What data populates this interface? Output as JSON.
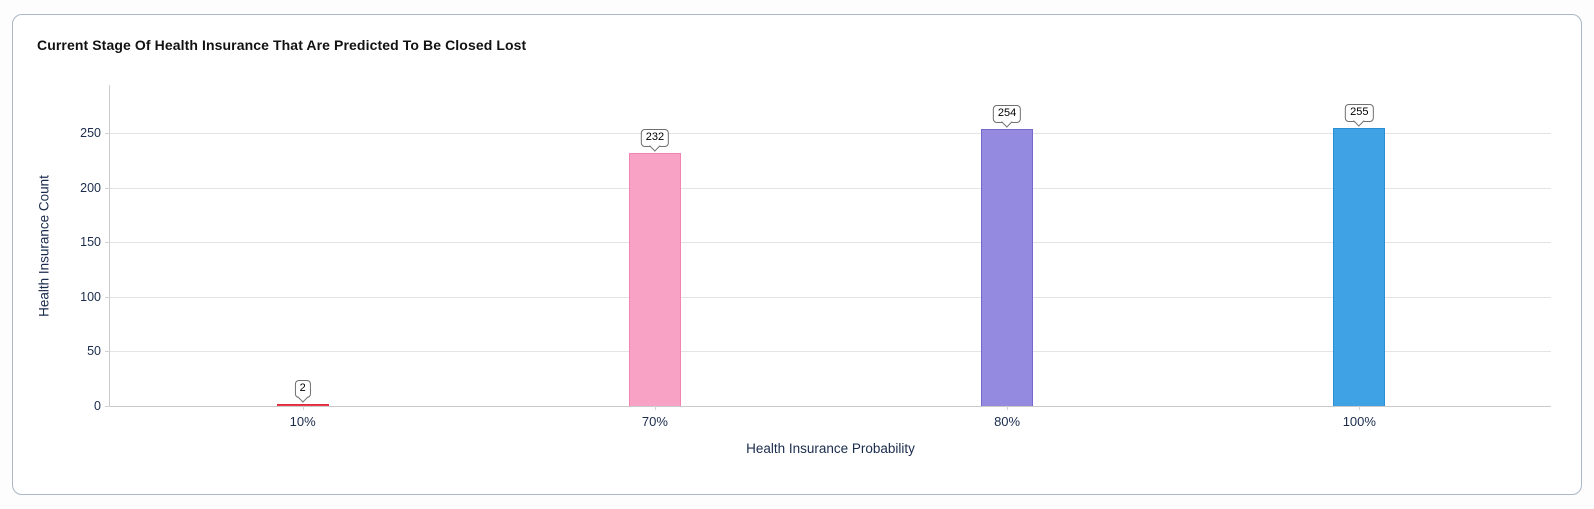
{
  "card": {
    "title": "Current Stage Of Health Insurance That Are Predicted To Be Closed Lost"
  },
  "chart_data": {
    "type": "bar",
    "title": "Current Stage Of Health Insurance That Are Predicted To Be Closed Lost",
    "categories": [
      "10%",
      "70%",
      "80%",
      "100%"
    ],
    "values": [
      2,
      232,
      254,
      255
    ],
    "value_labels": [
      "2",
      "232",
      "254",
      "255"
    ],
    "bar_fill_colors": [
      "#ee3a4f",
      "#f8a3c6",
      "#948be0",
      "#3ea2e5"
    ],
    "bar_border_colors": [
      "#dc2a3f",
      "#f283b3",
      "#7468cf",
      "#2a8ed6"
    ],
    "xlabel": "Health Insurance Probability",
    "ylabel": "Health Insurance Count",
    "yticks": [
      0,
      50,
      100,
      150,
      200,
      250
    ],
    "ylim": [
      0,
      294
    ],
    "grid": "horizontal",
    "legend_position": "none",
    "colors": {
      "grid": "#e4e4e4",
      "axis_line": "#cccccc",
      "tick_text": "#1a2b4c",
      "title_text": "#121212",
      "card_border": "#a9b7c6",
      "badge_border": "#6f6f6f"
    }
  }
}
